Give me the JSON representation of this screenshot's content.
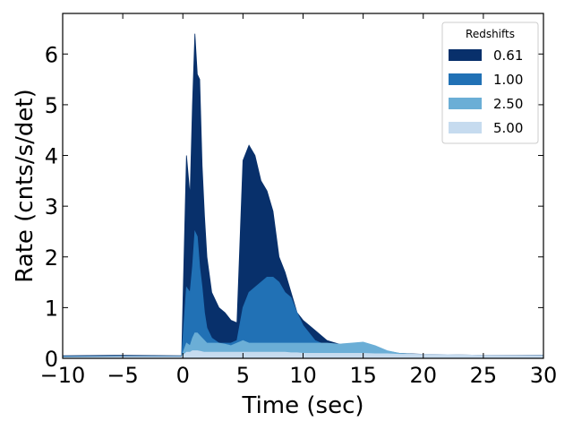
{
  "chart_data": {
    "type": "area",
    "title": "",
    "xlabel": "Time (sec)",
    "ylabel": "Rate (cnts/s/det)",
    "xlim": [
      -10,
      30
    ],
    "ylim": [
      0,
      6.8
    ],
    "xticks": [
      -10,
      -5,
      0,
      5,
      10,
      15,
      20,
      25,
      30
    ],
    "xtick_labels": [
      "−10",
      "−5",
      "0",
      "5",
      "10",
      "15",
      "20",
      "25",
      "30"
    ],
    "yticks": [
      0,
      1,
      2,
      3,
      4,
      5,
      6
    ],
    "ytick_labels": [
      "0",
      "1",
      "2",
      "3",
      "4",
      "5",
      "6"
    ],
    "grid": false,
    "legend": {
      "title": "Redshifts",
      "placement": "top-right"
    },
    "x": [
      -10,
      -5,
      -0.1,
      0.3,
      0.6,
      0.8,
      1.0,
      1.2,
      1.4,
      1.6,
      1.8,
      2.0,
      2.4,
      3.0,
      3.5,
      4.0,
      4.5,
      5.0,
      5.5,
      6.0,
      6.5,
      7.0,
      7.5,
      8.0,
      8.5,
      9.0,
      9.5,
      10.0,
      11.0,
      12.0,
      13.0,
      14.0,
      15.0,
      16.0,
      17.0,
      18.0,
      20.0,
      25.0,
      30.0
    ],
    "series": [
      {
        "name": "0.61",
        "color": "#08306b",
        "values": [
          0.05,
          0.06,
          0.05,
          4.0,
          3.2,
          5.0,
          6.4,
          5.6,
          5.5,
          3.8,
          2.8,
          2.0,
          1.3,
          1.0,
          0.9,
          0.75,
          0.7,
          3.9,
          4.2,
          4.0,
          3.5,
          3.3,
          2.9,
          2.0,
          1.7,
          1.3,
          0.9,
          0.75,
          0.55,
          0.35,
          0.28,
          0.25,
          0.2,
          0.16,
          0.14,
          0.1,
          0.08,
          0.06,
          0.06
        ]
      },
      {
        "name": "1.00",
        "color": "#2171b5",
        "values": [
          0.04,
          0.04,
          0.04,
          1.4,
          1.3,
          1.8,
          2.5,
          2.4,
          1.8,
          1.4,
          0.9,
          0.6,
          0.4,
          0.3,
          0.3,
          0.3,
          0.35,
          1.0,
          1.3,
          1.4,
          1.5,
          1.6,
          1.6,
          1.5,
          1.3,
          1.2,
          0.9,
          0.65,
          0.35,
          0.25,
          0.2,
          0.18,
          0.15,
          0.12,
          0.1,
          0.08,
          0.07,
          0.05,
          0.05
        ]
      },
      {
        "name": "2.50",
        "color": "#6baed6",
        "values": [
          0.03,
          0.04,
          0.04,
          0.3,
          0.25,
          0.4,
          0.5,
          0.5,
          0.45,
          0.4,
          0.35,
          0.3,
          0.3,
          0.3,
          0.28,
          0.25,
          0.3,
          0.35,
          0.3,
          0.3,
          0.3,
          0.3,
          0.3,
          0.3,
          0.3,
          0.3,
          0.3,
          0.3,
          0.3,
          0.3,
          0.28,
          0.3,
          0.32,
          0.25,
          0.15,
          0.1,
          0.07,
          0.05,
          0.05
        ]
      },
      {
        "name": "5.00",
        "color": "#c6dbef",
        "values": [
          0.02,
          0.03,
          0.03,
          0.12,
          0.12,
          0.15,
          0.15,
          0.15,
          0.14,
          0.13,
          0.12,
          0.12,
          0.12,
          0.12,
          0.12,
          0.12,
          0.12,
          0.12,
          0.12,
          0.12,
          0.12,
          0.12,
          0.12,
          0.12,
          0.12,
          0.11,
          0.11,
          0.1,
          0.1,
          0.1,
          0.1,
          0.1,
          0.1,
          0.09,
          0.09,
          0.08,
          0.08,
          0.06,
          0.05
        ]
      }
    ]
  }
}
